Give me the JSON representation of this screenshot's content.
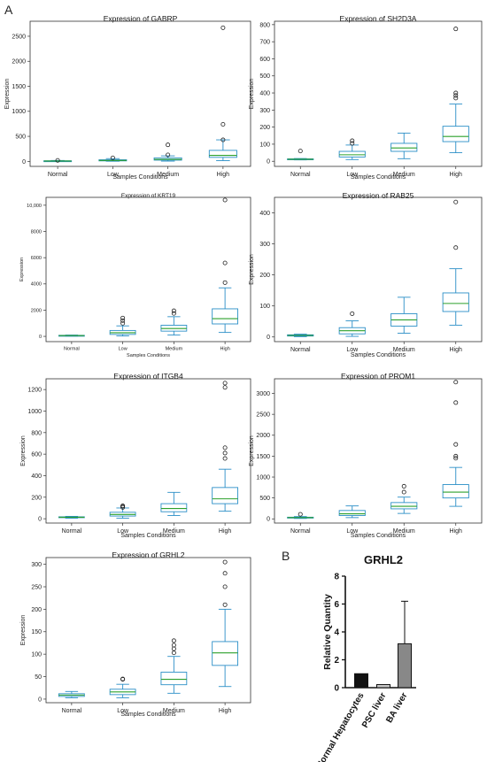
{
  "figure": {
    "panel_a_label": "A",
    "panel_b_label": "B"
  },
  "chart_data": [
    {
      "type": "box",
      "title": "Expression of GABRP",
      "xlabel": "Samples Conditions",
      "ylabel": "Expression",
      "categories": [
        "Normal",
        "Low",
        "Medium",
        "High"
      ],
      "ylim": [
        -100,
        2800
      ],
      "yticks": [
        0,
        500,
        1000,
        1500,
        2000,
        2500
      ],
      "ytick_labels": [
        "0",
        "500",
        "1000",
        "1500",
        "2000",
        "2500"
      ],
      "boxes": [
        {
          "min": 2,
          "q1": 5,
          "median": 8,
          "q3": 12,
          "max": 18,
          "outliers": [
            20
          ]
        },
        {
          "min": 3,
          "q1": 10,
          "median": 18,
          "q3": 32,
          "max": 55,
          "outliers": [
            70
          ]
        },
        {
          "min": 5,
          "q1": 25,
          "median": 40,
          "q3": 70,
          "max": 110,
          "outliers": [
            130,
            330
          ]
        },
        {
          "min": 15,
          "q1": 80,
          "median": 120,
          "q3": 220,
          "max": 430,
          "outliers": [
            430,
            740,
            2670
          ]
        }
      ]
    },
    {
      "type": "box",
      "title": "Expression of SH2D3A",
      "xlabel": "Samples Conditions",
      "ylabel": "Expression",
      "categories": [
        "Normal",
        "Low",
        "Medium",
        "High"
      ],
      "ylim": [
        -30,
        820
      ],
      "yticks": [
        0,
        100,
        200,
        300,
        400,
        500,
        600,
        700,
        800
      ],
      "ytick_labels": [
        "0",
        "100",
        "200",
        "300",
        "400",
        "500",
        "600",
        "700",
        "800"
      ],
      "boxes": [
        {
          "min": 8,
          "q1": 10,
          "median": 12,
          "q3": 14,
          "max": 16,
          "outliers": [
            60
          ]
        },
        {
          "min": 10,
          "q1": 25,
          "median": 38,
          "q3": 58,
          "max": 95,
          "outliers": [
            105,
            120
          ]
        },
        {
          "min": 15,
          "q1": 58,
          "median": 78,
          "q3": 105,
          "max": 165,
          "outliers": []
        },
        {
          "min": 50,
          "q1": 115,
          "median": 145,
          "q3": 205,
          "max": 335,
          "outliers": [
            370,
            385,
            400,
            775
          ]
        }
      ]
    },
    {
      "type": "box",
      "title": "Expression of KRT19",
      "xlabel": "Samples Conditions",
      "ylabel": "Expression",
      "categories": [
        "Normal",
        "Low",
        "Medium",
        "High"
      ],
      "ylim": [
        -400,
        10600
      ],
      "yticks": [
        0,
        2000,
        4000,
        6000,
        8000,
        10000
      ],
      "ytick_labels": [
        "0",
        "2000",
        "4000",
        "6000",
        "8000",
        "10,000"
      ],
      "boxes": [
        {
          "min": 20,
          "q1": 40,
          "median": 60,
          "q3": 80,
          "max": 100,
          "outliers": []
        },
        {
          "min": 30,
          "q1": 150,
          "median": 280,
          "q3": 450,
          "max": 800,
          "outliers": [
            1000,
            1200,
            1400
          ]
        },
        {
          "min": 100,
          "q1": 400,
          "median": 600,
          "q3": 850,
          "max": 1500,
          "outliers": [
            1750,
            1950
          ]
        },
        {
          "min": 300,
          "q1": 950,
          "median": 1350,
          "q3": 2100,
          "max": 3700,
          "outliers": [
            4100,
            5600,
            10400
          ]
        }
      ]
    },
    {
      "type": "box",
      "title": "Expression of RAB25",
      "xlabel": "Samples Conditions",
      "ylabel": "Expression",
      "categories": [
        "Normal",
        "Low",
        "Medium",
        "High"
      ],
      "ylim": [
        -15,
        450
      ],
      "yticks": [
        0,
        100,
        200,
        300,
        400
      ],
      "ytick_labels": [
        "0",
        "100",
        "200",
        "300",
        "400"
      ],
      "boxes": [
        {
          "min": 1,
          "q1": 3,
          "median": 5,
          "q3": 7,
          "max": 9,
          "outliers": []
        },
        {
          "min": 2,
          "q1": 10,
          "median": 20,
          "q3": 30,
          "max": 52,
          "outliers": [
            75
          ]
        },
        {
          "min": 12,
          "q1": 35,
          "median": 55,
          "q3": 75,
          "max": 128,
          "outliers": []
        },
        {
          "min": 38,
          "q1": 82,
          "median": 108,
          "q3": 142,
          "max": 220,
          "outliers": [
            288,
            435
          ]
        }
      ]
    },
    {
      "type": "box",
      "title": "Expression of ITGB4",
      "xlabel": "Samples Conditions",
      "ylabel": "Expression",
      "categories": [
        "Normal",
        "Low",
        "Medium",
        "High"
      ],
      "ylim": [
        -40,
        1300
      ],
      "yticks": [
        0,
        200,
        400,
        600,
        800,
        1000,
        1200
      ],
      "ytick_labels": [
        "0",
        "200",
        "400",
        "600",
        "800",
        "1000",
        "1200"
      ],
      "boxes": [
        {
          "min": 5,
          "q1": 10,
          "median": 14,
          "q3": 18,
          "max": 22,
          "outliers": []
        },
        {
          "min": 5,
          "q1": 25,
          "median": 40,
          "q3": 60,
          "max": 100,
          "outliers": [
            105,
            115,
            120
          ]
        },
        {
          "min": 30,
          "q1": 65,
          "median": 95,
          "q3": 140,
          "max": 245,
          "outliers": []
        },
        {
          "min": 70,
          "q1": 140,
          "median": 185,
          "q3": 290,
          "max": 460,
          "outliers": [
            560,
            610,
            660,
            1220,
            1260
          ]
        }
      ]
    },
    {
      "type": "box",
      "title": "Expression of PROM1",
      "xlabel": "Samples Conditions",
      "ylabel": "Expression",
      "categories": [
        "Normal",
        "Low",
        "Medium",
        "High"
      ],
      "ylim": [
        -100,
        3350
      ],
      "yticks": [
        0,
        500,
        1000,
        1500,
        2000,
        2500,
        3000
      ],
      "ytick_labels": [
        "0",
        "500",
        "1000",
        "1500",
        "2000",
        "2500",
        "3000"
      ],
      "boxes": [
        {
          "min": 10,
          "q1": 20,
          "median": 30,
          "q3": 40,
          "max": 55,
          "outliers": [
            110
          ]
        },
        {
          "min": 30,
          "q1": 80,
          "median": 120,
          "q3": 200,
          "max": 310,
          "outliers": []
        },
        {
          "min": 130,
          "q1": 240,
          "median": 300,
          "q3": 390,
          "max": 520,
          "outliers": [
            640,
            780
          ]
        },
        {
          "min": 300,
          "q1": 500,
          "median": 640,
          "q3": 820,
          "max": 1230,
          "outliers": [
            1450,
            1500,
            1780,
            2780,
            3270
          ]
        }
      ]
    },
    {
      "type": "box",
      "title": "Expression of GRHL2",
      "xlabel": "Samples Conditions",
      "ylabel": "Expression",
      "categories": [
        "Normal",
        "Low",
        "Medium",
        "High"
      ],
      "ylim": [
        -8,
        315
      ],
      "yticks": [
        0,
        50,
        100,
        150,
        200,
        250,
        300
      ],
      "ytick_labels": [
        "0",
        "50",
        "100",
        "150",
        "200",
        "250",
        "300"
      ],
      "boxes": [
        {
          "min": 3,
          "q1": 6,
          "median": 9,
          "q3": 12,
          "max": 17,
          "outliers": []
        },
        {
          "min": 3,
          "q1": 10,
          "median": 16,
          "q3": 22,
          "max": 33,
          "outliers": [
            44,
            45
          ]
        },
        {
          "min": 13,
          "q1": 32,
          "median": 44,
          "q3": 60,
          "max": 95,
          "outliers": [
            103,
            112,
            120,
            130
          ]
        },
        {
          "min": 28,
          "q1": 75,
          "median": 103,
          "q3": 128,
          "max": 200,
          "outliers": [
            210,
            250,
            280,
            305
          ]
        }
      ]
    },
    {
      "type": "bar",
      "title": "GRHL2",
      "xlabel": "",
      "ylabel": "Relative Quantity",
      "categories": [
        "Normal Hepatocytes",
        "PSC liver",
        "BA liver"
      ],
      "values": [
        1.0,
        0.22,
        3.15
      ],
      "error_upper": [
        0,
        0,
        3.05
      ],
      "colors": [
        "#111111",
        "#c8c8c8",
        "#888888"
      ],
      "ylim": [
        0,
        8
      ],
      "yticks": [
        0,
        2,
        4,
        6,
        8
      ],
      "ytick_labels": [
        "0",
        "2",
        "4",
        "6",
        "8"
      ]
    }
  ]
}
